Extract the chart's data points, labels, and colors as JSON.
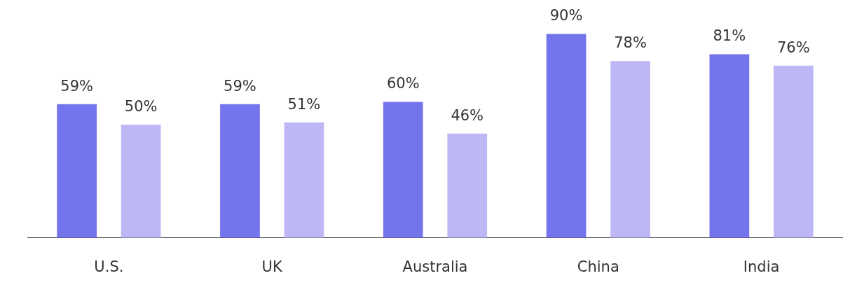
{
  "chart_data": {
    "type": "bar",
    "categories": [
      "U.S.",
      "UK",
      "Australia",
      "China",
      "India"
    ],
    "series": [
      {
        "color": "#7474ed",
        "values": [
          59,
          59,
          60,
          90,
          81
        ],
        "value_labels": [
          "59%",
          "59%",
          "60%",
          "90%",
          "81%"
        ]
      },
      {
        "color": "#bdb8f5",
        "values": [
          50,
          51,
          46,
          78,
          76
        ],
        "value_labels": [
          "50%",
          "51%",
          "46%",
          "78%",
          "76%"
        ]
      }
    ],
    "legend": false,
    "grid": false
  }
}
